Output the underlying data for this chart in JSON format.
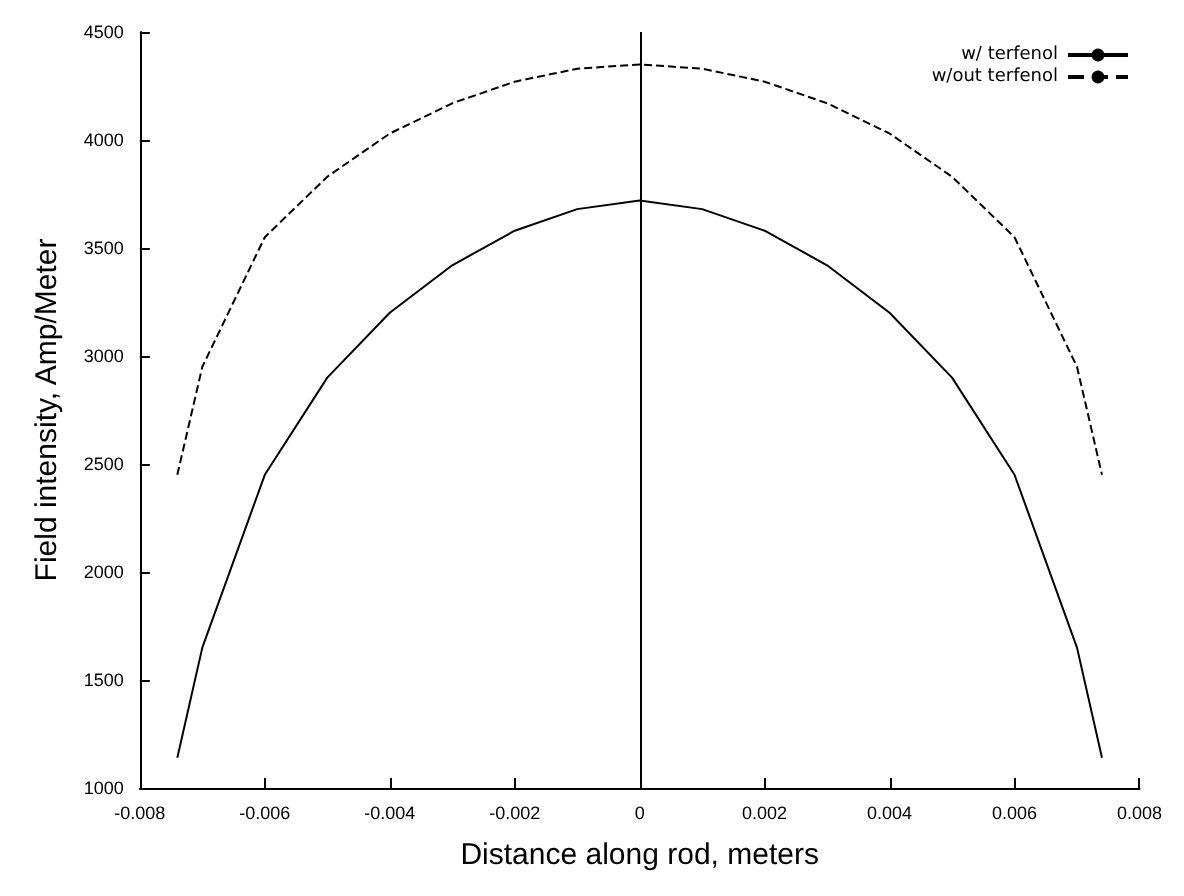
{
  "chart_data": {
    "type": "line",
    "xlabel": "Distance along rod, meters",
    "ylabel": "Field intensity, Amp/Meter",
    "x": [
      -0.0074,
      -0.007,
      -0.006,
      -0.005,
      -0.004,
      -0.003,
      -0.002,
      -0.001,
      0,
      0.001,
      0.002,
      0.003,
      0.004,
      0.005,
      0.006,
      0.007,
      0.0074
    ],
    "series": [
      {
        "name": "w/ terfenol",
        "color": "#000000",
        "line_style": "solid",
        "values": [
          1140,
          1650,
          2450,
          2900,
          3200,
          3420,
          3580,
          3680,
          3720,
          3680,
          3580,
          3420,
          3200,
          2900,
          2450,
          1650,
          1140
        ]
      },
      {
        "name": "w/out terfenol",
        "color": "#000000",
        "line_style": "dashed",
        "values": [
          2450,
          2950,
          3550,
          3830,
          4030,
          4170,
          4270,
          4330,
          4350,
          4330,
          4270,
          4170,
          4030,
          3830,
          3550,
          2950,
          2450
        ]
      }
    ],
    "xlim": [
      -0.008,
      0.008
    ],
    "xticks": [
      -0.008,
      -0.006,
      -0.004,
      -0.002,
      0,
      0.002,
      0.004,
      0.006,
      0.008
    ],
    "ylim": [
      1000,
      4500
    ],
    "yticks": [
      1000,
      1500,
      2000,
      2500,
      3000,
      3500,
      4000,
      4500
    ],
    "ref_lines": [
      {
        "axis": "x",
        "value": 0,
        "color": "#000000"
      }
    ],
    "legend": "top right",
    "grid": false,
    "marker": "none"
  }
}
